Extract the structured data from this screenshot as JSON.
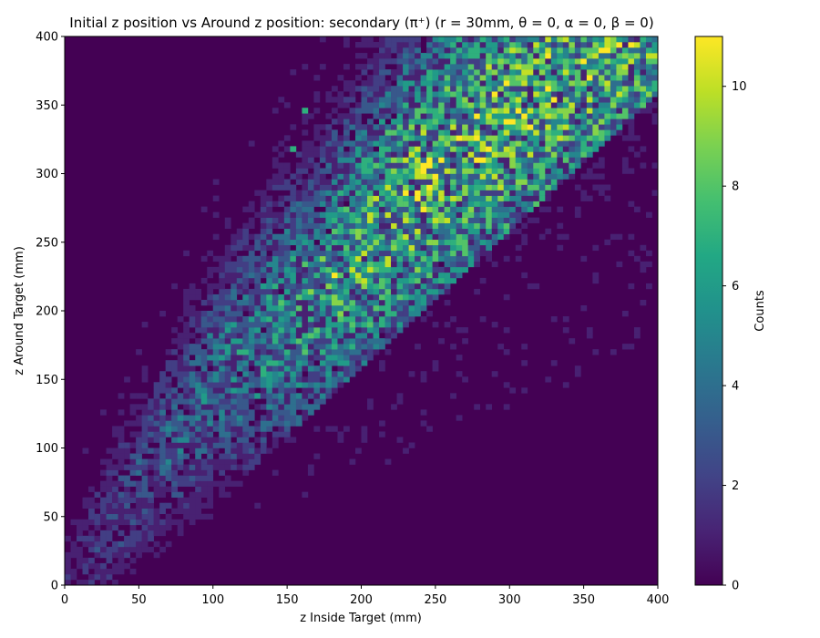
{
  "chart_data": {
    "type": "heatmap",
    "title": "Initial z position vs Around z position: secondary (π⁺) (r = 30mm, θ = 0, α = 0, β = 0)",
    "xlabel": "z Inside Target (mm)",
    "ylabel": "z Around Target (mm)",
    "colorbar_label": "Counts",
    "xlim": [
      0,
      400
    ],
    "ylim": [
      0,
      400
    ],
    "clim": [
      0,
      11
    ],
    "x_ticks": [
      "0",
      "50",
      "100",
      "150",
      "200",
      "250",
      "300",
      "350",
      "400"
    ],
    "y_ticks": [
      "0",
      "50",
      "100",
      "150",
      "200",
      "250",
      "300",
      "350",
      "400"
    ],
    "colorbar_ticks": [
      "0",
      "2",
      "4",
      "6",
      "8",
      "10"
    ],
    "bins": [
      100,
      100
    ],
    "colormap": "viridis",
    "background_color": "#440154",
    "peak": {
      "x": 182,
      "y": 226,
      "count": 11
    },
    "ridge": {
      "description_points": [
        [
          0,
          0
        ],
        [
          100,
          150
        ],
        [
          180,
          220
        ],
        [
          250,
          300
        ],
        [
          330,
          370
        ]
      ]
    },
    "notable_cells": [
      {
        "x": 182,
        "y": 226,
        "count": 11
      },
      {
        "x": 322,
        "y": 358,
        "count": 8
      },
      {
        "x": 298,
        "y": 370,
        "count": 9
      },
      {
        "x": 306,
        "y": 350,
        "count": 8
      },
      {
        "x": 162,
        "y": 346,
        "count": 7
      },
      {
        "x": 154,
        "y": 318,
        "count": 7
      }
    ]
  }
}
